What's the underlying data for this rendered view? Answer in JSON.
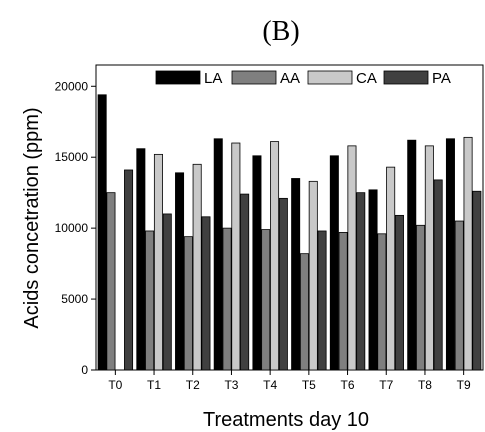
{
  "chart_data": {
    "type": "bar",
    "title": "(B)",
    "xlabel": "Treatments day 10",
    "ylabel": "Acids concetration (ppm)",
    "categories": [
      "T0",
      "T1",
      "T2",
      "T3",
      "T4",
      "T5",
      "T6",
      "T7",
      "T8",
      "T9"
    ],
    "ylim": [
      0,
      21500
    ],
    "yticks": [
      0,
      5000,
      10000,
      15000,
      20000
    ],
    "legend_position": "top",
    "grid": false,
    "series": [
      {
        "name": "LA",
        "color": "#000000",
        "values": [
          19400,
          15600,
          13900,
          16300,
          15100,
          13500,
          15100,
          12700,
          16200,
          16300
        ]
      },
      {
        "name": "AA",
        "color": "#7f7f7f",
        "values": [
          12500,
          9800,
          9400,
          10000,
          9900,
          8200,
          9700,
          9600,
          10200,
          10500
        ]
      },
      {
        "name": "CA",
        "color": "#c9c9c9",
        "values": [
          0,
          15200,
          14500,
          16000,
          16100,
          13300,
          15800,
          14300,
          15800,
          16400
        ]
      },
      {
        "name": "PA",
        "color": "#404040",
        "values": [
          14100,
          11000,
          10800,
          12400,
          12100,
          9800,
          12500,
          10900,
          13400,
          12600
        ]
      }
    ]
  }
}
